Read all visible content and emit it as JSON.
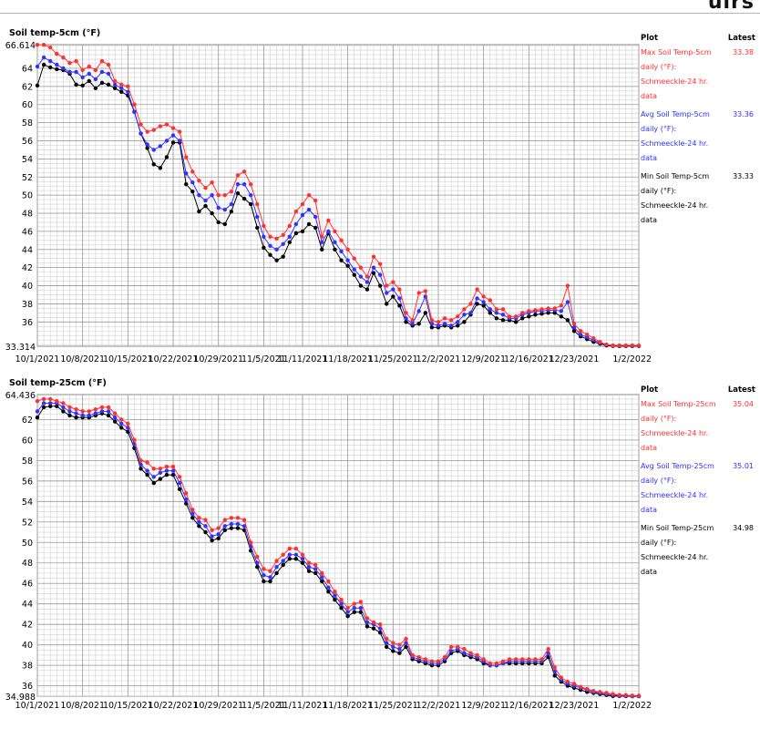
{
  "header": {
    "partial_title": "ulrs"
  },
  "chart_data": [
    {
      "type": "line",
      "title": "Soil temp-5cm (°F)",
      "xlabel": "",
      "ylabel": "",
      "ylim": [
        33.314,
        66.614
      ],
      "y_extreme_labels": [
        "66.614",
        "33.314"
      ],
      "yticks": [
        36,
        38,
        40,
        42,
        44,
        46,
        48,
        50,
        52,
        54,
        56,
        58,
        60,
        62,
        64
      ],
      "x_tick_labels": [
        "10/1/2021",
        "10/8/2021",
        "10/15/2021",
        "10/22/2021",
        "10/29/2021",
        "11/5/2021",
        "11/11/2021",
        "11/18/2021",
        "11/25/2021",
        "12/2/2021",
        "12/9/2021",
        "12/16/2021",
        "12/23/2021",
        "1/2/2022"
      ],
      "x_tick_days": [
        0,
        7,
        14,
        21,
        28,
        35,
        41,
        48,
        55,
        62,
        69,
        76,
        83,
        93
      ],
      "x_start": "2021-10-01",
      "x_end": "2022-01-02",
      "x_days": [
        0,
        1,
        2,
        3,
        4,
        5,
        6,
        7,
        8,
        9,
        10,
        11,
        12,
        13,
        14,
        15,
        16,
        17,
        18,
        19,
        20,
        21,
        22,
        23,
        24,
        25,
        26,
        27,
        28,
        29,
        30,
        31,
        32,
        33,
        34,
        35,
        36,
        37,
        38,
        39,
        40,
        41,
        42,
        43,
        44,
        45,
        46,
        47,
        48,
        49,
        50,
        51,
        52,
        53,
        54,
        55,
        56,
        57,
        58,
        59,
        60,
        61,
        62,
        63,
        64,
        65,
        66,
        67,
        68,
        69,
        70,
        71,
        72,
        73,
        74,
        75,
        76,
        77,
        78,
        79,
        80,
        81,
        82,
        83,
        84,
        85,
        86,
        87,
        88,
        89,
        90,
        91,
        92,
        93
      ],
      "series": [
        {
          "name": "Max Soil Temp-5cm daily (°F): Schmeeckle-24 hr. data",
          "color": "#ff3030",
          "latest": "33.38",
          "values": [
            66.6,
            66.6,
            66.3,
            65.6,
            65.2,
            64.6,
            64.8,
            63.8,
            64.2,
            63.8,
            64.8,
            64.4,
            62.6,
            62.2,
            62.0,
            60.0,
            57.8,
            57.0,
            57.2,
            57.6,
            57.8,
            57.4,
            57.0,
            54.2,
            52.6,
            51.6,
            50.8,
            51.4,
            50.0,
            50.0,
            50.4,
            52.2,
            52.6,
            51.2,
            49.0,
            46.6,
            45.4,
            45.2,
            45.6,
            46.6,
            48.2,
            49.0,
            50.0,
            49.4,
            45.4,
            47.2,
            46.0,
            45.0,
            44.0,
            43.0,
            42.0,
            41.0,
            43.2,
            42.4,
            40.0,
            40.4,
            39.6,
            37.0,
            36.2,
            39.2,
            39.4,
            36.2,
            36.0,
            36.4,
            36.2,
            36.6,
            37.4,
            38.0,
            39.6,
            38.8,
            38.4,
            37.4,
            37.4,
            36.6,
            36.6,
            37.0,
            37.2,
            37.3,
            37.4,
            37.5,
            37.5,
            37.8,
            40.0,
            35.8,
            35.0,
            34.6,
            34.2,
            33.8,
            33.5,
            33.4,
            33.4,
            33.4,
            33.4,
            33.4
          ]
        },
        {
          "name": "Avg Soil Temp-5cm daily (°F): Schmeeckle-24 hr. data",
          "color": "#3030ff",
          "latest": "33.36",
          "values": [
            64.2,
            65.2,
            64.8,
            64.4,
            64.0,
            63.6,
            63.6,
            63.0,
            63.4,
            62.8,
            63.6,
            63.4,
            62.2,
            61.8,
            61.4,
            59.2,
            56.8,
            55.6,
            55.0,
            55.4,
            56.0,
            56.6,
            56.0,
            52.4,
            51.4,
            50.0,
            49.4,
            50.0,
            48.6,
            48.4,
            49.0,
            51.2,
            51.2,
            50.0,
            47.6,
            45.4,
            44.4,
            44.0,
            44.6,
            45.4,
            46.8,
            47.8,
            48.4,
            47.6,
            44.8,
            46.0,
            44.8,
            43.8,
            42.8,
            41.8,
            41.0,
            40.4,
            42.0,
            41.2,
            39.2,
            39.6,
            38.6,
            36.4,
            35.8,
            37.2,
            38.8,
            35.8,
            35.6,
            35.8,
            35.6,
            36.0,
            36.8,
            37.0,
            38.6,
            38.2,
            37.4,
            37.0,
            36.8,
            36.4,
            36.4,
            36.8,
            37.0,
            37.2,
            37.2,
            37.3,
            37.3,
            37.2,
            38.2,
            35.4,
            34.6,
            34.3,
            34.0,
            33.7,
            33.5,
            33.4,
            33.4,
            33.4,
            33.4,
            33.36
          ]
        },
        {
          "name": "Min Soil Temp-5cm daily (°F): Schmeeckle-24 hr. data",
          "color": "#000000",
          "latest": "33.33",
          "values": [
            62.1,
            64.4,
            64.1,
            63.9,
            63.8,
            63.4,
            62.2,
            62.1,
            62.6,
            61.8,
            62.4,
            62.2,
            61.8,
            61.4,
            61.0,
            59.2,
            56.8,
            55.2,
            53.4,
            53.0,
            54.2,
            55.8,
            55.8,
            51.2,
            50.4,
            48.2,
            48.8,
            48.0,
            47.0,
            46.8,
            48.2,
            50.2,
            49.6,
            49.0,
            46.4,
            44.2,
            43.4,
            42.8,
            43.2,
            44.8,
            45.8,
            46.0,
            46.8,
            46.4,
            44.0,
            45.8,
            44.0,
            42.8,
            42.2,
            41.2,
            40.0,
            39.6,
            41.4,
            40.0,
            38.0,
            38.8,
            37.8,
            36.0,
            35.6,
            35.8,
            37.0,
            35.4,
            35.4,
            35.6,
            35.4,
            35.6,
            36.0,
            36.8,
            38.0,
            37.8,
            37.0,
            36.4,
            36.2,
            36.2,
            36.0,
            36.4,
            36.6,
            36.8,
            36.9,
            37.0,
            37.0,
            36.6,
            36.2,
            35.0,
            34.4,
            34.1,
            33.8,
            33.6,
            33.4,
            33.35,
            33.33,
            33.33,
            33.33,
            33.33
          ]
        }
      ]
    },
    {
      "type": "line",
      "title": "Soil temp-25cm (°F)",
      "xlabel": "",
      "ylabel": "",
      "ylim": [
        34.988,
        64.436
      ],
      "y_extreme_labels": [
        "64.436",
        "34.988"
      ],
      "yticks": [
        36,
        38,
        40,
        42,
        44,
        46,
        48,
        50,
        52,
        54,
        56,
        58,
        60,
        62
      ],
      "x_tick_labels": [
        "10/1/2021",
        "10/8/2021",
        "10/15/2021",
        "10/22/2021",
        "10/29/2021",
        "11/5/2021",
        "11/11/2021",
        "11/18/2021",
        "11/25/2021",
        "12/2/2021",
        "12/9/2021",
        "12/16/2021",
        "12/23/2021",
        "1/2/2022"
      ],
      "x_tick_days": [
        0,
        7,
        14,
        21,
        28,
        35,
        41,
        48,
        55,
        62,
        69,
        76,
        83,
        93
      ],
      "x_start": "2021-10-01",
      "x_end": "2022-01-02",
      "x_days": [
        0,
        1,
        2,
        3,
        4,
        5,
        6,
        7,
        8,
        9,
        10,
        11,
        12,
        13,
        14,
        15,
        16,
        17,
        18,
        19,
        20,
        21,
        22,
        23,
        24,
        25,
        26,
        27,
        28,
        29,
        30,
        31,
        32,
        33,
        34,
        35,
        36,
        37,
        38,
        39,
        40,
        41,
        42,
        43,
        44,
        45,
        46,
        47,
        48,
        49,
        50,
        51,
        52,
        53,
        54,
        55,
        56,
        57,
        58,
        59,
        60,
        61,
        62,
        63,
        64,
        65,
        66,
        67,
        68,
        69,
        70,
        71,
        72,
        73,
        74,
        75,
        76,
        77,
        78,
        79,
        80,
        81,
        82,
        83,
        84,
        85,
        86,
        87,
        88,
        89,
        90,
        91,
        92,
        93
      ],
      "series": [
        {
          "name": "Max Soil Temp-25cm daily (°F): Schmeeckle-24 hr. data",
          "color": "#ff3030",
          "latest": "35.04",
          "values": [
            63.8,
            64.0,
            64.0,
            63.8,
            63.6,
            63.2,
            63.0,
            62.8,
            62.8,
            63.0,
            63.2,
            63.2,
            62.6,
            62.0,
            61.6,
            60.0,
            58.0,
            57.8,
            57.2,
            57.2,
            57.4,
            57.4,
            56.4,
            54.8,
            53.2,
            52.4,
            52.2,
            51.2,
            51.4,
            52.2,
            52.4,
            52.4,
            52.2,
            50.0,
            48.6,
            47.4,
            47.2,
            48.2,
            48.8,
            49.4,
            49.4,
            48.8,
            48.0,
            47.8,
            47.0,
            46.2,
            45.2,
            44.4,
            43.6,
            44.0,
            44.2,
            42.6,
            42.2,
            42.0,
            40.6,
            40.2,
            40.0,
            40.6,
            39.0,
            38.8,
            38.6,
            38.4,
            38.4,
            38.8,
            39.8,
            39.8,
            39.6,
            39.2,
            39.0,
            38.6,
            38.2,
            38.2,
            38.4,
            38.6,
            38.6,
            38.6,
            38.6,
            38.6,
            38.6,
            39.6,
            37.8,
            36.8,
            36.4,
            36.2,
            35.9,
            35.7,
            35.5,
            35.4,
            35.3,
            35.2,
            35.1,
            35.1,
            35.05,
            35.04
          ]
        },
        {
          "name": "Avg Soil Temp-25cm daily (°F): Schmeeckle-24 hr. data",
          "color": "#3030ff",
          "latest": "35.01",
          "values": [
            62.8,
            63.6,
            63.6,
            63.6,
            63.2,
            62.8,
            62.6,
            62.4,
            62.4,
            62.6,
            62.8,
            62.8,
            62.2,
            61.6,
            61.2,
            59.6,
            57.6,
            57.0,
            56.4,
            56.8,
            57.0,
            57.0,
            55.8,
            54.2,
            52.8,
            52.0,
            51.6,
            50.6,
            50.8,
            51.6,
            51.8,
            51.8,
            51.6,
            49.6,
            48.0,
            46.8,
            46.6,
            47.6,
            48.2,
            48.8,
            48.8,
            48.4,
            47.6,
            47.4,
            46.6,
            45.6,
            44.8,
            44.0,
            43.2,
            43.6,
            43.6,
            42.2,
            42.0,
            41.6,
            40.2,
            39.8,
            39.6,
            40.2,
            38.8,
            38.6,
            38.4,
            38.2,
            38.2,
            38.6,
            39.4,
            39.6,
            39.2,
            39.0,
            38.8,
            38.4,
            38.0,
            38.0,
            38.2,
            38.4,
            38.4,
            38.4,
            38.4,
            38.4,
            38.4,
            39.2,
            37.4,
            36.6,
            36.2,
            36.0,
            35.8,
            35.6,
            35.4,
            35.3,
            35.2,
            35.1,
            35.05,
            35.03,
            35.02,
            35.01
          ]
        },
        {
          "name": "Min Soil Temp-25cm daily (°F): Schmeeckle-24 hr. data",
          "color": "#000000",
          "latest": "34.98",
          "values": [
            62.2,
            63.2,
            63.3,
            63.3,
            62.8,
            62.4,
            62.2,
            62.2,
            62.2,
            62.4,
            62.6,
            62.4,
            61.8,
            61.2,
            60.8,
            59.2,
            57.2,
            56.6,
            55.8,
            56.2,
            56.6,
            56.6,
            55.2,
            53.8,
            52.4,
            51.6,
            51.0,
            50.2,
            50.4,
            51.2,
            51.4,
            51.4,
            51.2,
            49.2,
            47.6,
            46.2,
            46.2,
            47.0,
            47.8,
            48.4,
            48.4,
            48.0,
            47.2,
            47.0,
            46.2,
            45.2,
            44.4,
            43.6,
            42.8,
            43.2,
            43.2,
            41.8,
            41.6,
            41.2,
            39.8,
            39.4,
            39.2,
            39.8,
            38.6,
            38.4,
            38.2,
            38.0,
            38.0,
            38.4,
            39.2,
            39.4,
            39.0,
            38.8,
            38.6,
            38.2,
            38.0,
            38.0,
            38.2,
            38.2,
            38.2,
            38.2,
            38.2,
            38.2,
            38.2,
            38.8,
            37.0,
            36.4,
            36.0,
            35.8,
            35.6,
            35.4,
            35.3,
            35.2,
            35.1,
            35.0,
            35.0,
            34.99,
            34.98,
            34.98
          ]
        }
      ]
    }
  ],
  "legends": [
    {
      "head_plot": "Plot",
      "head_latest": "Latest"
    },
    {
      "head_plot": "Plot",
      "head_latest": "Latest"
    }
  ]
}
